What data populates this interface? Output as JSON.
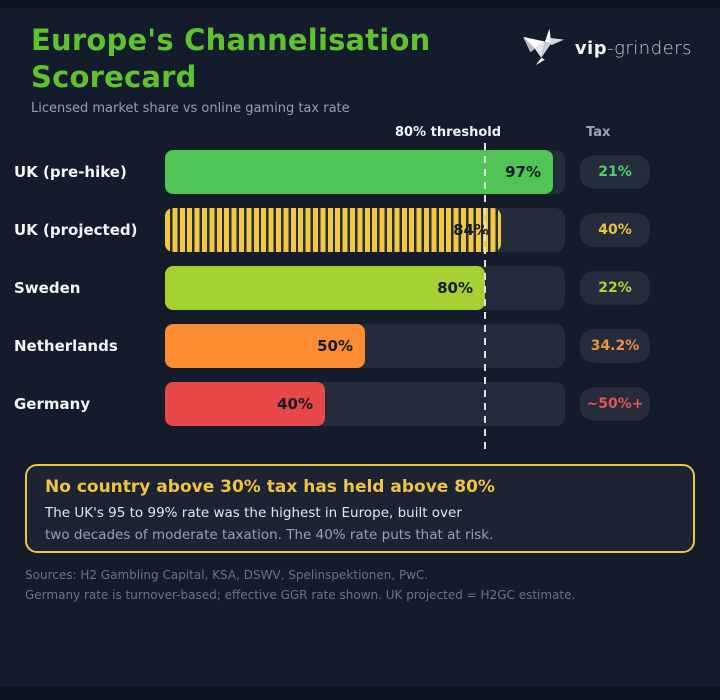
{
  "header": {
    "title_line1": "Europe's Channelisation",
    "title_line2": "Scorecard",
    "subtitle": "Licensed market share vs online gaming tax rate"
  },
  "logo": {
    "brand_bold": "vip",
    "brand_light": "-grinders",
    "icon": "hummingbird-icon"
  },
  "columns": {
    "threshold_label": "80% threshold",
    "tax_header": "Tax"
  },
  "colors": {
    "background": "#141b2a",
    "track": "#242b3a",
    "badge_bg": "#252c3b",
    "title_green": "#5fc230",
    "callout_border": "#e9c640",
    "threshold_line": "#dce2ea"
  },
  "rows": [
    {
      "label": "UK (pre-hike)",
      "value": 97,
      "value_label": "97%",
      "color": "#50c455",
      "striped": false,
      "tax_label": "21%",
      "tax_color": "#4cd467"
    },
    {
      "label": "UK (projected)",
      "value": 84,
      "value_label": "84%",
      "color": "#f1c83f",
      "striped": true,
      "tax_label": "40%",
      "tax_color": "#edc23d"
    },
    {
      "label": "Sweden",
      "value": 80,
      "value_label": "80%",
      "color": "#a6d132",
      "striped": false,
      "tax_label": "22%",
      "tax_color": "#a9d53b"
    },
    {
      "label": "Netherlands",
      "value": 50,
      "value_label": "50%",
      "color": "#fb8c32",
      "striped": false,
      "tax_label": "34.2%",
      "tax_color": "#f0913c"
    },
    {
      "label": "Germany",
      "value": 40,
      "value_label": "40%",
      "color": "#e64747",
      "striped": false,
      "tax_label": "~50%+",
      "tax_color": "#e85252"
    }
  ],
  "chart_data": {
    "type": "bar",
    "orientation": "horizontal",
    "title": "Europe's Channelisation Scorecard",
    "subtitle": "Licensed market share vs online gaming tax rate",
    "categories": [
      "UK (pre-hike)",
      "UK (projected)",
      "Sweden",
      "Netherlands",
      "Germany"
    ],
    "series": [
      {
        "name": "Licensed market share (%)",
        "values": [
          97,
          84,
          80,
          50,
          40
        ],
        "data_labels": [
          "97%",
          "84%",
          "80%",
          "50%",
          "40%"
        ]
      },
      {
        "name": "Tax",
        "data_labels": [
          "21%",
          "40%",
          "22%",
          "34.2%",
          "~50%+"
        ]
      }
    ],
    "bar_colors": [
      "#50c455",
      "#f1c83f",
      "#a6d132",
      "#fb8c32",
      "#e64747"
    ],
    "striped_bar_index": 1,
    "xlim": [
      0,
      100
    ],
    "threshold": {
      "value": 80,
      "label": "80% threshold",
      "style": "dashed-vertical-line"
    },
    "grid": false,
    "legend_position": "none"
  },
  "callout": {
    "title": "No country above 30% tax has held above 80%",
    "body_line1": "The UK's 95 to 99% rate was the highest in Europe, built over",
    "body_line2": "two decades of moderate taxation. The 40% rate puts that at risk."
  },
  "footer": {
    "line1": "Sources: H2 Gambling Capital, KSA, DSWV, Spelinspektionen, PwC.",
    "line2": "Germany rate is turnover-based; effective GGR rate shown. UK projected = H2GC estimate."
  }
}
